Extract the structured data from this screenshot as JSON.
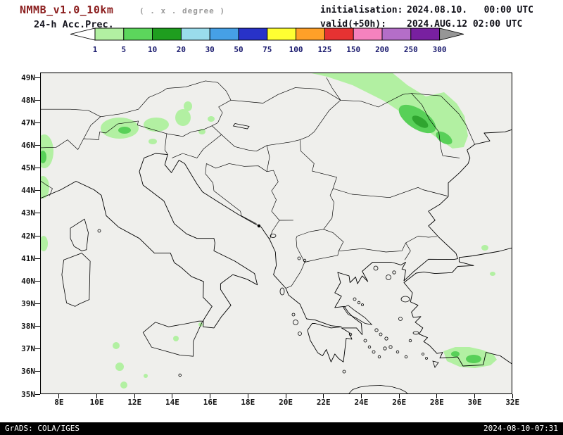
{
  "header": {
    "model_title": "NMMB_v1.0_10km",
    "grid_note": "( . x . degree )",
    "product": "24-h Acc.Prec.",
    "init_label": "initialisation:",
    "init_value": "2024.08.10.   00:00 UTC",
    "valid_label": "valid(+50h):",
    "valid_value": "2024.AUG.12 02:00 UTC"
  },
  "legend": {
    "tick_labels": [
      "1",
      "5",
      "10",
      "20",
      "30",
      "50",
      "75",
      "100",
      "125",
      "150",
      "200",
      "250",
      "300"
    ],
    "cell_colors": [
      "#b2f0a2",
      "#5cd65c",
      "#1f9e1f",
      "#9adcec",
      "#46a0e6",
      "#2832c8",
      "#ffff32",
      "#ffa028",
      "#e63232",
      "#f582be",
      "#b46ec8",
      "#7820a0"
    ],
    "under_range_color": "#ffffff",
    "over_range_color": "#969696"
  },
  "map": {
    "lat_labels": [
      "49N",
      "48N",
      "47N",
      "46N",
      "45N",
      "44N",
      "43N",
      "42N",
      "41N",
      "40N",
      "39N",
      "38N",
      "37N",
      "36N",
      "35N"
    ],
    "lon_labels": [
      "8E",
      "10E",
      "12E",
      "14E",
      "16E",
      "18E",
      "20E",
      "22E",
      "24E",
      "26E",
      "28E",
      "30E",
      "32E"
    ]
  },
  "footer": {
    "left": "GrADS: COLA/IGES",
    "right": "2024-08-10-07:31"
  },
  "colors": {
    "title": "#8b1d1d",
    "grid_note": "#9a9a9a",
    "header_text": "#101018",
    "legend_label": "#1a1a6e",
    "map_background": "#efefec",
    "precip_light": "#b2f0a2",
    "precip_medium": "#58d058",
    "precip_dark": "#2fa52f"
  }
}
